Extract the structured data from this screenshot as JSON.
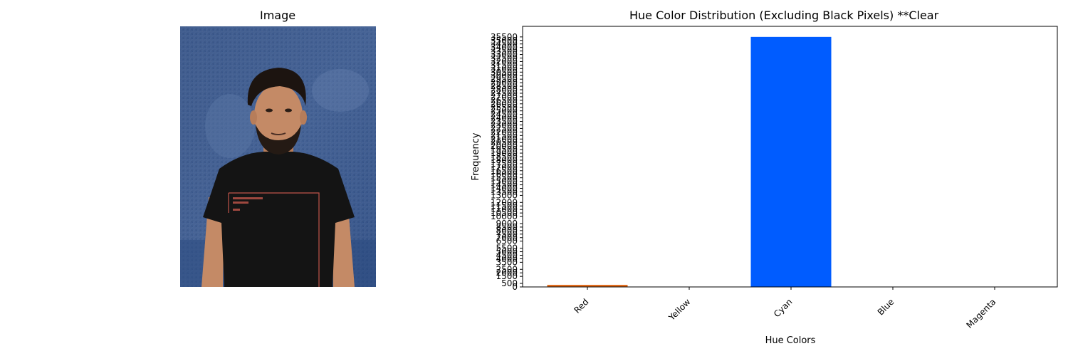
{
  "image_panel": {
    "title": "Image"
  },
  "chart_data": {
    "type": "bar",
    "title": "Hue Color Distribution (Excluding Black Pixels) **Clear",
    "xlabel": "Hue Colors",
    "ylabel": "Frequency",
    "categories": [
      "Red",
      "Yellow",
      "Cyan",
      "Blue",
      "Magenta"
    ],
    "values": [
      300,
      0,
      35500,
      0,
      0
    ],
    "bar_colors": [
      "#e06c1c",
      "#f2e600",
      "#005cff",
      "#1f3cff",
      "#e000e0"
    ],
    "ylim": [
      0,
      37000
    ],
    "y_ticks": [
      0,
      500,
      1500,
      2000,
      2500,
      3500,
      4000,
      4500,
      5000,
      5500,
      6500,
      7000,
      7500,
      8000,
      8500,
      9000,
      10000,
      10500,
      11000,
      11500,
      12000,
      13000,
      13500,
      14000,
      14500,
      15000,
      15500,
      16000,
      16500,
      17000,
      17500,
      18000,
      18500,
      19000,
      19500,
      20000,
      20500,
      21000,
      21500,
      22000,
      22500,
      23000,
      23500,
      24000,
      24500,
      25000,
      25500,
      26000,
      26500,
      27000,
      27500,
      28000,
      28500,
      29000,
      29500,
      30000,
      30500,
      31000,
      31500,
      32000,
      32500,
      33000,
      33500,
      34000,
      34500,
      35000,
      35500
    ],
    "x_tick_rotation": 45,
    "grid": false
  }
}
